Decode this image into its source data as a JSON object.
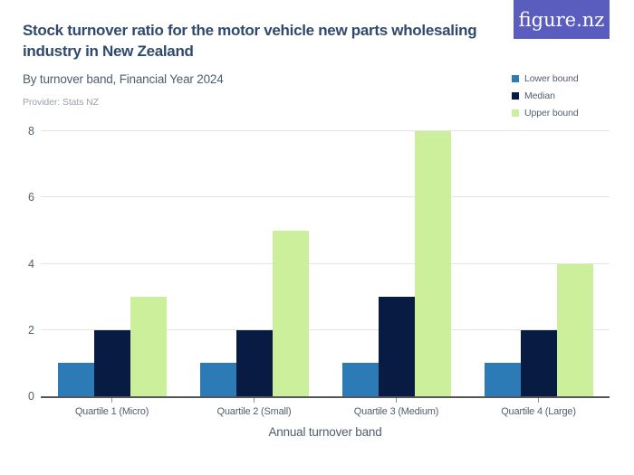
{
  "logo": {
    "text": "figure.nz",
    "bg_color": "#5a5dbe"
  },
  "header": {
    "title": "Stock turnover ratio for the motor vehicle new parts wholesaling industry in New Zealand",
    "subtitle": "By turnover band, Financial Year 2024",
    "provider": "Provider: Stats NZ"
  },
  "legend": [
    {
      "label": "Lower bound",
      "color": "#2d7bb6"
    },
    {
      "label": "Median",
      "color": "#081c43"
    },
    {
      "label": "Upper bound",
      "color": "#cbef9a"
    }
  ],
  "chart_data": {
    "type": "bar",
    "title": "Stock turnover ratio for the motor vehicle new parts wholesaling industry in New Zealand",
    "subtitle": "By turnover band, Financial Year 2024",
    "categories": [
      "Quartile 1 (Micro)",
      "Quartile 2 (Small)",
      "Quartile 3 (Medium)",
      "Quartile 4 (Large)"
    ],
    "series": [
      {
        "name": "Lower bound",
        "color": "#2d7bb6",
        "values": [
          1,
          1,
          1,
          1
        ]
      },
      {
        "name": "Median",
        "color": "#081c43",
        "values": [
          2,
          2,
          3,
          2
        ]
      },
      {
        "name": "Upper bound",
        "color": "#cbef9a",
        "values": [
          3,
          5,
          8,
          4
        ]
      }
    ],
    "xlabel": "Annual turnover band",
    "ylabel": "",
    "ylim": [
      0,
      8
    ],
    "yticks": [
      0,
      2,
      4,
      6,
      8
    ],
    "grid": true,
    "legend_position": "top-right"
  },
  "colors": {
    "title": "#2f4a6e",
    "axis_text": "#51606f",
    "gridline": "#e2e2e2",
    "baseline": "#55565a"
  }
}
